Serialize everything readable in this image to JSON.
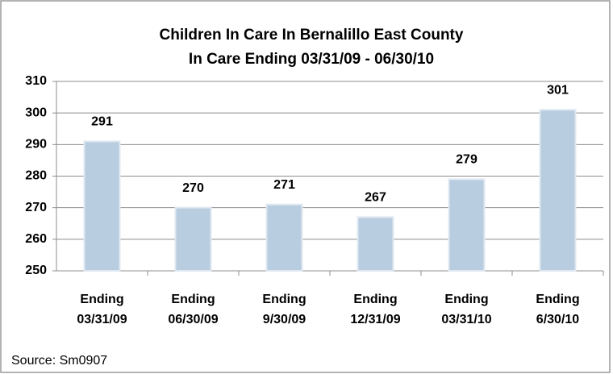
{
  "chart_data": {
    "type": "bar",
    "title": "Children In Care In  Bernalillo East County",
    "subtitle": "In Care Ending 03/31/09 - 06/30/10",
    "categories": [
      "Ending 03/31/09",
      "Ending 06/30/09",
      "Ending 9/30/09",
      "Ending 12/31/09",
      "Ending 03/31/10",
      "Ending 6/30/10"
    ],
    "values": [
      291,
      270,
      271,
      267,
      279,
      301
    ],
    "color": "#b9cde0",
    "ylim": [
      250,
      310
    ],
    "yticks": [
      250,
      260,
      270,
      280,
      290,
      300,
      310
    ],
    "grid": true,
    "source": "Source: Sm0907"
  }
}
